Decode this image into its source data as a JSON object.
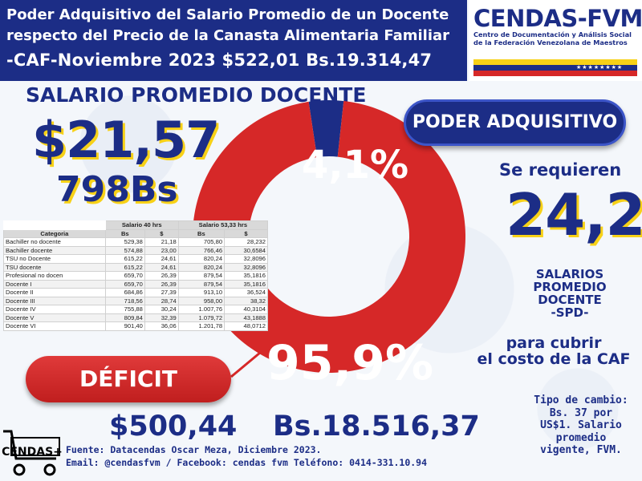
{
  "header": {
    "line1": "Poder Adquisitivo del Salario Promedio de un Docente",
    "line2": "respecto del Precio de la Canasta Alimentaria Familiar",
    "line3": "-CAF-Noviembre 2023  $522,01 Bs.19.314,47"
  },
  "logo": {
    "title": "CENDAS-FVM",
    "sub1": "Centro de Documentación y Análisis Social",
    "sub2": "de la Federación Venezolana de Maestros",
    "flag_colors": [
      "#f7d117",
      "#1c2d86",
      "#d62828"
    ]
  },
  "salario": {
    "title": "SALARIO PROMEDIO DOCENTE",
    "usd": "$21,57",
    "bs": "798Bs"
  },
  "chart_data": {
    "type": "pie",
    "variant": "donut",
    "slices": [
      {
        "label": "4,1%",
        "value": 4.1,
        "color": "#1c2d86"
      },
      {
        "label": "95,9%",
        "value": 95.9,
        "color": "#d62828"
      }
    ]
  },
  "poder_label": "PODER ADQUISITIVO",
  "requeridos": {
    "se_requieren": "Se requieren",
    "valor": "24,2",
    "spd_lines": [
      "SALARIOS",
      "PROMEDIO",
      "DOCENTE",
      "-SPD-"
    ],
    "para_lines": [
      "para cubrir",
      "el costo de la CAF"
    ]
  },
  "table": {
    "group_headers": [
      "Salario 40 hrs",
      "Salario 53,33 hrs"
    ],
    "columns": [
      "Categoria",
      "Bs",
      "$",
      "Bs",
      "$"
    ],
    "rows": [
      [
        "Bachiller no docente",
        "529,38",
        "21,18",
        "705,80",
        "28,232"
      ],
      [
        "Bachiller docente",
        "574,88",
        "23,00",
        "766,46",
        "30,6584"
      ],
      [
        "TSU no Docente",
        "615,22",
        "24,61",
        "820,24",
        "32,8096"
      ],
      [
        "TSU docente",
        "615,22",
        "24,61",
        "820,24",
        "32,8096"
      ],
      [
        "Profesional no docen",
        "659,70",
        "26,39",
        "879,54",
        "35,1816"
      ],
      [
        "Docente I",
        "659,70",
        "26,39",
        "879,54",
        "35,1816"
      ],
      [
        "Docente II",
        "684,86",
        "27,39",
        "913,10",
        "36,524"
      ],
      [
        "Docente III",
        "718,56",
        "28,74",
        "958,00",
        "38,32"
      ],
      [
        "Docente IV",
        "755,88",
        "30,24",
        "1.007,76",
        "40,3104"
      ],
      [
        "Docente V",
        "809,84",
        "32,39",
        "1.079,72",
        "43,1888"
      ],
      [
        "Docente VI",
        "901,40",
        "36,06",
        "1.201,78",
        "48,0712"
      ]
    ]
  },
  "deficit": {
    "label": "DÉFICIT",
    "usd": "$500,44",
    "bs": "Bs.18.516,37"
  },
  "footer": {
    "fuente": "Fuente: Datacendas Oscar Meza, Diciembre 2023.",
    "email": "Email: @cendasfvm / Facebook: cendas fvm Teléfono: 0414-331.10.94"
  },
  "tipo_cambio_lines": [
    "Tipo de cambio:",
    "Bs. 37 por",
    "US$1. Salario",
    "promedio",
    "vigente, FVM."
  ],
  "cart_label": "CENDAS+"
}
